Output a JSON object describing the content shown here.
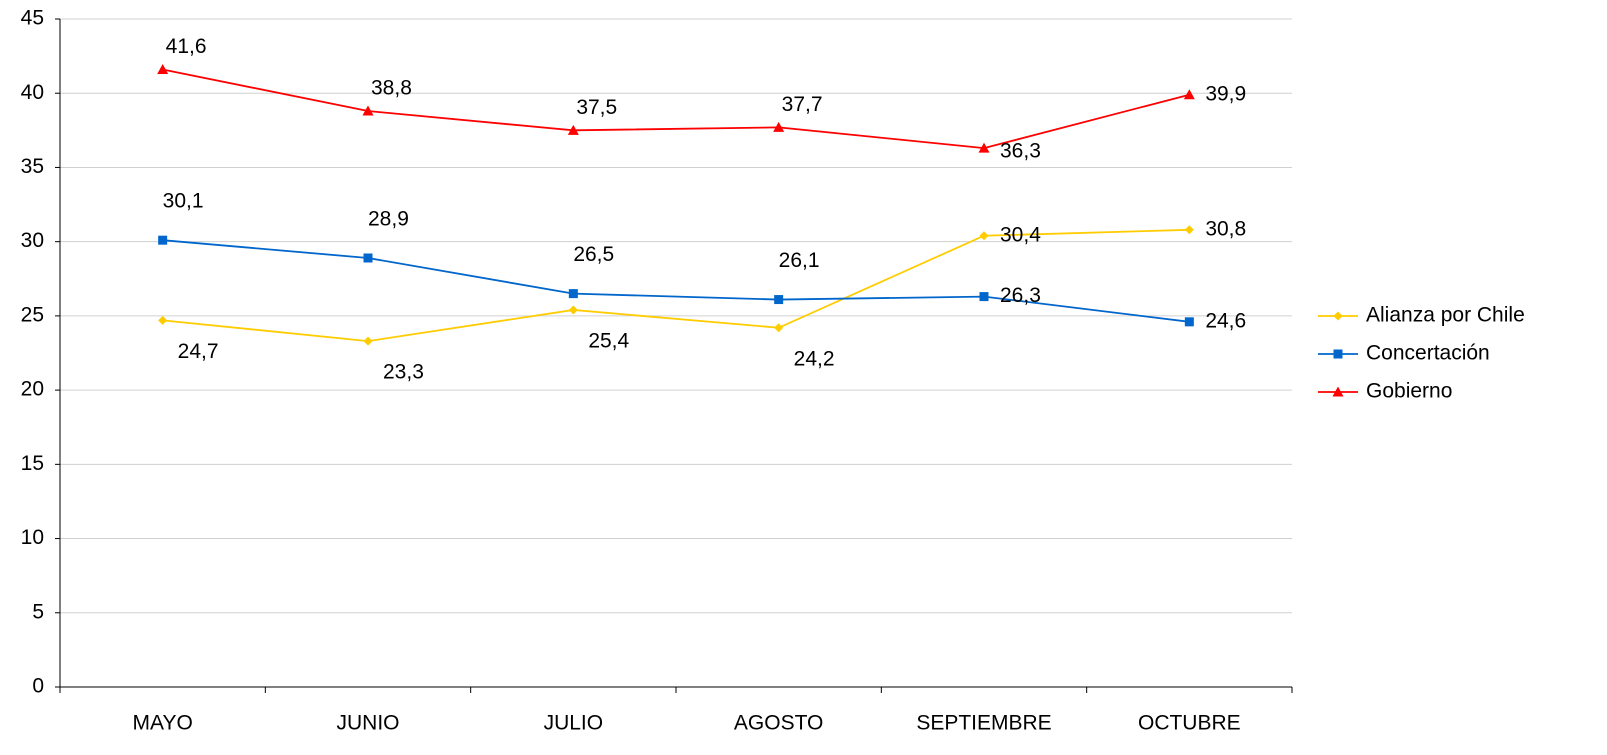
{
  "chart_data": {
    "type": "line",
    "categories": [
      "MAYO",
      "JUNIO",
      "JULIO",
      "AGOSTO",
      "SEPTIEMBRE",
      "OCTUBRE"
    ],
    "series": [
      {
        "name": "Alianza por Chile",
        "color": "#ffcc00",
        "marker": "diamond",
        "values": [
          24.7,
          23.3,
          25.4,
          24.2,
          30.4,
          30.8
        ],
        "value_labels": [
          "24,7",
          "23,3",
          "25,4",
          "24,2",
          "30,4",
          "30,8"
        ]
      },
      {
        "name": "Concertación",
        "color": "#0066cc",
        "marker": "square",
        "values": [
          30.1,
          28.9,
          26.5,
          26.1,
          26.3,
          24.6
        ],
        "value_labels": [
          "30,1",
          "28,9",
          "26,5",
          "26,1",
          "26,3",
          "24,6"
        ]
      },
      {
        "name": "Gobierno",
        "color": "#ff0000",
        "marker": "triangle",
        "values": [
          41.6,
          38.8,
          37.5,
          37.7,
          36.3,
          39.9
        ],
        "value_labels": [
          "41,6",
          "38,8",
          "37,5",
          "37,7",
          "36,3",
          "39,9"
        ]
      }
    ],
    "ylim": [
      0,
      45
    ],
    "yticks": [
      0,
      5,
      10,
      15,
      20,
      25,
      30,
      35,
      40,
      45
    ],
    "grid": true,
    "legend": "right"
  }
}
